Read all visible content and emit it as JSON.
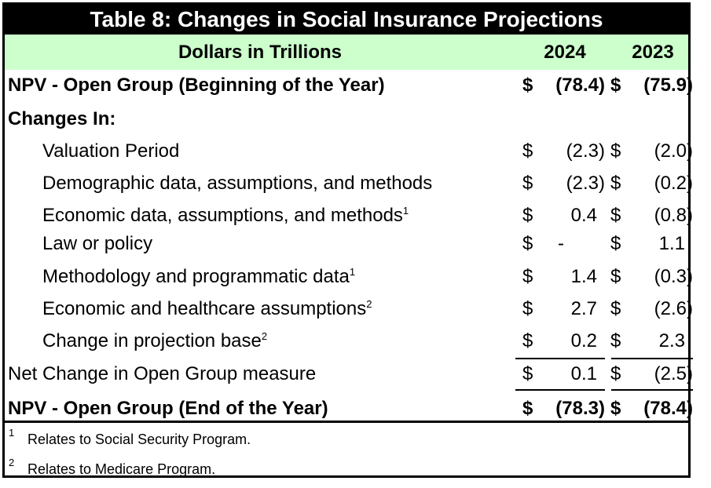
{
  "title": "Table 8:  Changes in Social Insurance Projections",
  "header": {
    "label": "Dollars in Trillions",
    "col1": "2024",
    "col2": "2023"
  },
  "rows": [
    {
      "label": "NPV - Open Group (Beginning of the Year)",
      "sup": "",
      "d1": "$",
      "v1": "(78.4)",
      "d2": "$",
      "v2": "(75.9)"
    },
    {
      "label": "Changes In:",
      "sup": "",
      "d1": "",
      "v1": "",
      "d2": "",
      "v2": ""
    },
    {
      "label": "Valuation Period",
      "sup": "",
      "d1": "$",
      "v1": "(2.3)",
      "d2": "$",
      "v2": "(2.0)"
    },
    {
      "label": "Demographic data, assumptions, and methods",
      "sup": "",
      "d1": "$",
      "v1": "(2.3)",
      "d2": "$",
      "v2": "(0.2)"
    },
    {
      "label": "Economic data, assumptions, and methods",
      "sup": "1",
      "d1": "$",
      "v1": "0.4",
      "d2": "$",
      "v2": "(0.8)"
    },
    {
      "label": "Law or policy",
      "sup": "",
      "d1": "$",
      "v1": "-",
      "d2": "$",
      "v2": "1.1"
    },
    {
      "label": "Methodology and programmatic data",
      "sup": "1",
      "d1": "$",
      "v1": "1.4",
      "d2": "$",
      "v2": "(0.3)"
    },
    {
      "label": "Economic and healthcare assumptions",
      "sup": "2",
      "d1": "$",
      "v1": "2.7",
      "d2": "$",
      "v2": "(2.6)"
    },
    {
      "label": "Change in projection base",
      "sup": "2",
      "d1": "$",
      "v1": "0.2",
      "d2": "$",
      "v2": "2.3"
    },
    {
      "label": "Net Change in Open Group measure",
      "sup": "",
      "d1": "$",
      "v1": "0.1",
      "d2": "$",
      "v2": "(2.5)"
    },
    {
      "label": "NPV - Open Group (End of the Year)",
      "sup": "",
      "d1": "$",
      "v1": "(78.3)",
      "d2": "$",
      "v2": "(78.4)"
    }
  ],
  "footnotes": [
    {
      "mark": "1",
      "text": "Relates to Social Security Program."
    },
    {
      "mark": "2",
      "text": "Relates to Medicare Program."
    }
  ]
}
